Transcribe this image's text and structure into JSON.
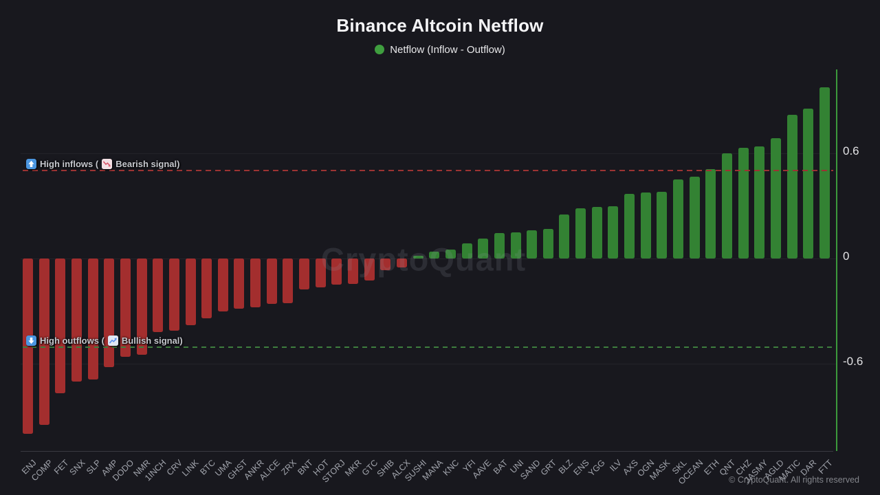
{
  "title": "Binance Altcoin Netflow",
  "legend": {
    "label": "Netflow (Inflow - Outflow)",
    "color": "#3f9e3f"
  },
  "watermark": "CryptoQuant",
  "footer": {
    "copyright": "© CryptoQuant. All rights reserved"
  },
  "annotations": {
    "high_inflows": {
      "icon": "up-arrow-icon",
      "label": "High inflows",
      "paren_open": "(",
      "signal_icon": "chart-decreasing-icon",
      "signal_label": "Bearish signal",
      "paren_close": ")",
      "threshold_value": 0.5,
      "line_color": "#9c3333"
    },
    "high_outflows": {
      "icon": "down-arrow-icon",
      "label": "High outflows",
      "paren_open": "(",
      "signal_icon": "chart-increasing-icon",
      "signal_label": "Bullish signal",
      "paren_close": ")",
      "threshold_value": -0.5,
      "line_color": "#3e7e3e"
    }
  },
  "chart_data": {
    "type": "bar",
    "title": "Binance Altcoin Netflow",
    "series_name": "Netflow (Inflow - Outflow)",
    "categories": [
      "ENJ",
      "COMP",
      "FET",
      "SNX",
      "SLP",
      "AMP",
      "DODO",
      "NMR",
      "1INCH",
      "CRV",
      "LINK",
      "BTC",
      "UMA",
      "GHST",
      "ANKR",
      "ALICE",
      "ZRX",
      "BNT",
      "HOT",
      "STORJ",
      "MKR",
      "GTC",
      "SHIB",
      "ALCX",
      "SUSHI",
      "MANA",
      "KNC",
      "YFI",
      "AAVE",
      "BAT",
      "UNI",
      "SAND",
      "GRT",
      "BLZ",
      "ENS",
      "YGG",
      "ILV",
      "AXS",
      "OGN",
      "MASK",
      "SKL",
      "OCEAN",
      "ETH",
      "QNT",
      "CHZ",
      "JASMY",
      "AGLD",
      "MATIC",
      "DAR",
      "FTT"
    ],
    "values": [
      -1.0,
      -0.95,
      -0.77,
      -0.7,
      -0.69,
      -0.62,
      -0.56,
      -0.55,
      -0.42,
      -0.41,
      -0.38,
      -0.34,
      -0.3,
      -0.285,
      -0.28,
      -0.26,
      -0.255,
      -0.175,
      -0.165,
      -0.15,
      -0.145,
      -0.125,
      -0.065,
      -0.05,
      0.015,
      0.04,
      0.05,
      0.085,
      0.115,
      0.145,
      0.15,
      0.16,
      0.17,
      0.25,
      0.285,
      0.295,
      0.3,
      0.37,
      0.375,
      0.38,
      0.45,
      0.465,
      0.51,
      0.6,
      0.63,
      0.64,
      0.685,
      0.82,
      0.855,
      0.975
    ],
    "ytick_labels": [
      "0.6",
      "0",
      "-0.6"
    ],
    "ytick_values": [
      0.6,
      0,
      -0.6
    ],
    "ylim": [
      -1.08,
      1.08
    ],
    "grid": "horizontal-faint",
    "legend_position": "top-center",
    "colors": {
      "positive": "#338233",
      "negative": "#a32e2e",
      "axis": "#3c9a3c"
    },
    "thresholds": {
      "high_inflow": 0.5,
      "high_outflow": -0.5
    }
  }
}
